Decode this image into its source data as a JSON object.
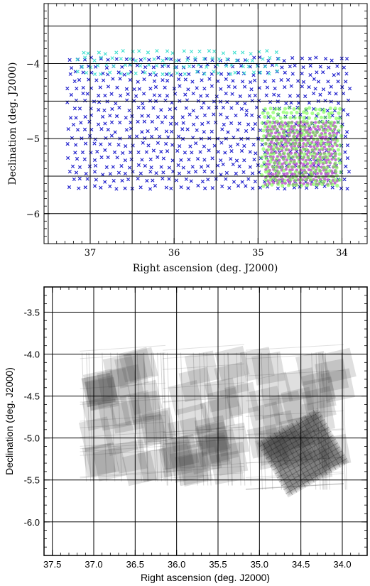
{
  "chart_data": [
    {
      "type": "scatter",
      "title": "",
      "xlabel": "Right ascension (deg. J2000)",
      "ylabel": "Declination (deg. J2000)",
      "xlim": [
        37.55,
        33.7
      ],
      "ylim": [
        -6.4,
        -3.2
      ],
      "x_axis_direction": "decreasing",
      "x_ticks": [
        37,
        36,
        35,
        34
      ],
      "x_tick_labels": [
        "37",
        "36",
        "35",
        "34"
      ],
      "y_ticks": [
        -4,
        -5,
        -6
      ],
      "y_tick_labels": [
        "−4",
        "−5",
        "−6"
      ],
      "grid_ra": [
        37.5,
        37.0,
        36.5,
        36.0,
        35.5,
        35.0,
        34.5,
        34.0
      ],
      "grid_dec": [
        -3.5,
        -4.0,
        -4.5,
        -5.0,
        -5.5,
        -6.0
      ],
      "grid": true,
      "legend": "none",
      "series": [
        {
          "marker": "x",
          "color": "#1a1acc",
          "region": {
            "ra": [
              37.25,
              33.9
            ],
            "dec": [
              -5.65,
              -3.9
            ]
          },
          "step": [
            0.095,
            0.095
          ]
        },
        {
          "marker": "x",
          "color": "#40e0d0",
          "region": {
            "ra": [
              37.15,
              34.7
            ],
            "dec": [
              -4.12,
              -3.78
            ]
          },
          "step": [
            0.1,
            0.09
          ]
        },
        {
          "marker": "o",
          "color": "#c060d0",
          "region": {
            "ra": [
              34.9,
              34.05
            ],
            "dec": [
              -5.6,
              -4.75
            ]
          },
          "step": [
            0.045,
            0.045
          ]
        },
        {
          "marker": "o",
          "color": "#66ff33",
          "region": {
            "ra": [
              34.95,
              34.0
            ],
            "dec": [
              -5.62,
              -4.58
            ]
          },
          "step": [
            0.06,
            0.06
          ]
        }
      ]
    },
    {
      "type": "heatmap",
      "title": "",
      "xlabel": "Right ascension (deg. J2000)",
      "ylabel": "Declination (deg. J2000)",
      "xlim": [
        37.6,
        33.7
      ],
      "ylim": [
        -6.4,
        -3.2
      ],
      "x_axis_direction": "decreasing",
      "x_ticks": [
        37.5,
        37.0,
        36.5,
        36.0,
        35.5,
        35.0,
        34.5,
        34.0
      ],
      "x_tick_labels": [
        "37.5",
        "37.0",
        "36.5",
        "36.0",
        "35.5",
        "35.0",
        "34.5",
        "34.0"
      ],
      "y_ticks": [
        -3.5,
        -4.0,
        -4.5,
        -5.0,
        -5.5,
        -6.0
      ],
      "y_tick_labels": [
        "-3.5",
        "-4.0",
        "-4.5",
        "-5.0",
        "-5.5",
        "-6.0"
      ],
      "grid_ra": [
        37.5,
        37.0,
        36.5,
        36.0,
        35.5,
        35.0,
        34.5,
        34.0
      ],
      "grid_dec": [
        -3.5,
        -4.0,
        -4.5,
        -5.0,
        -5.5,
        -6.0
      ],
      "grid": true,
      "legend": "none",
      "colormap": "grayscale",
      "coverage": {
        "fields": [
          {
            "ra": [
              37.2,
              36.1
            ],
            "dec": [
              -5.55,
              -3.95
            ]
          },
          {
            "ra": [
              36.2,
              35.15
            ],
            "dec": [
              -5.6,
              -3.95
            ]
          },
          {
            "ra": [
              35.2,
              33.95
            ],
            "dec": [
              -5.65,
              -3.95
            ]
          }
        ],
        "deep_field": {
          "ra": [
            34.9,
            34.05
          ],
          "dec": [
            -5.55,
            -4.8
          ]
        }
      }
    }
  ]
}
